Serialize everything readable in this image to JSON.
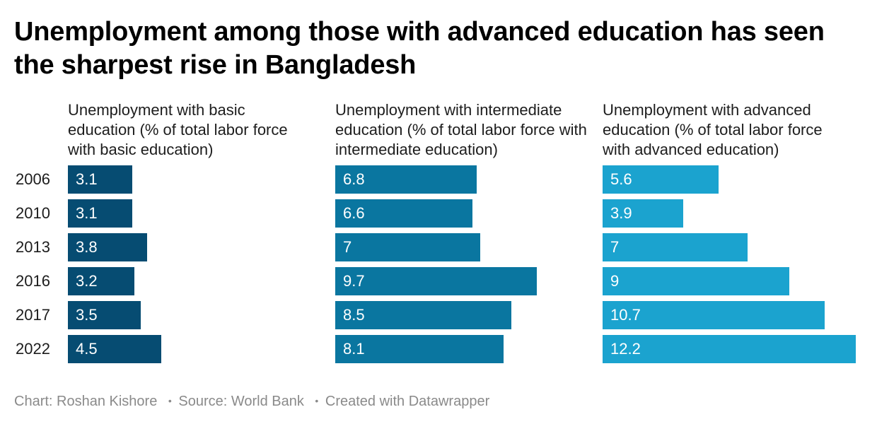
{
  "title": "Unemployment among those with advanced education has seen the sharpest rise in Bangladesh",
  "colors": {
    "basic": "#064c72",
    "intermediate": "#0a76a0",
    "advanced": "#1ba3cf"
  },
  "chart_data": {
    "type": "bar",
    "orientation": "horizontal",
    "title": "Unemployment among those with advanced education has seen the sharpest rise in Bangladesh",
    "categories": [
      "2006",
      "2010",
      "2013",
      "2016",
      "2017",
      "2022"
    ],
    "series": [
      {
        "name": "Unemployment with basic education (% of total labor force with basic education)",
        "values": [
          3.1,
          3.1,
          3.8,
          3.2,
          3.5,
          4.5
        ]
      },
      {
        "name": "Unemployment with intermediate education (% of total labor force with intermediate education)",
        "values": [
          6.8,
          6.6,
          7,
          9.7,
          8.5,
          8.1
        ]
      },
      {
        "name": "Unemployment with advanced education (% of total labor force with advanced education)",
        "values": [
          5.6,
          3.9,
          7,
          9,
          10.7,
          12.2
        ]
      }
    ],
    "value_labels": [
      [
        "3.1",
        "3.1",
        "3.8",
        "3.2",
        "3.5",
        "4.5"
      ],
      [
        "6.8",
        "6.6",
        "7",
        "9.7",
        "8.5",
        "8.1"
      ],
      [
        "5.6",
        "3.9",
        "7",
        "9",
        "10.7",
        "12.2"
      ]
    ],
    "xlim": [
      0,
      12.2
    ],
    "grid": false,
    "legend": "none"
  },
  "footer": {
    "chart_by": "Chart: Roshan Kishore",
    "source": "Source: World Bank",
    "created": "Created with Datawrapper"
  }
}
